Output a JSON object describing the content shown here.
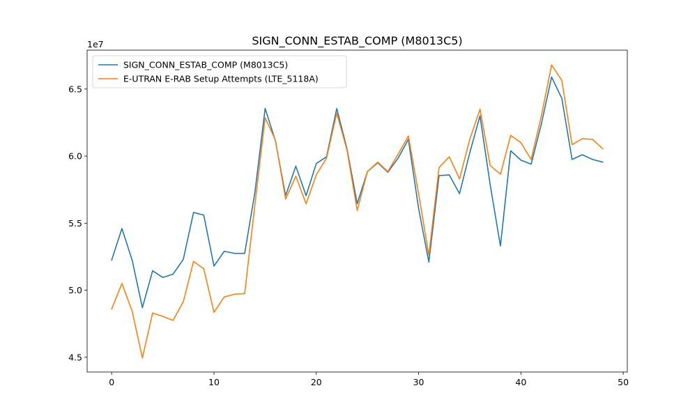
{
  "chart_data": {
    "type": "line",
    "title": "SIGN_CONN_ESTAB_COMP (M8013C5)",
    "xlabel": "",
    "ylabel": "",
    "y_offset_label": "1e7",
    "xlim": [
      -2.4,
      50.4
    ],
    "ylim": [
      4.39,
      6.79
    ],
    "x_ticks": [
      0,
      10,
      20,
      30,
      40,
      50
    ],
    "y_ticks": [
      4.5,
      5.0,
      5.5,
      6.0,
      6.5
    ],
    "y_tick_labels": [
      "4.5",
      "5.0",
      "5.5",
      "6.0",
      "6.5"
    ],
    "x_tick_labels": [
      "0",
      "10",
      "20",
      "30",
      "40",
      "50"
    ],
    "grid": false,
    "legend_position": "upper-left",
    "x": [
      0,
      1,
      2,
      3,
      4,
      5,
      6,
      7,
      8,
      9,
      10,
      11,
      12,
      13,
      14,
      15,
      16,
      17,
      18,
      19,
      20,
      21,
      22,
      23,
      24,
      25,
      26,
      27,
      28,
      29,
      30,
      31,
      32,
      33,
      34,
      35,
      36,
      37,
      38,
      39,
      40,
      41,
      42,
      43,
      44,
      45,
      46,
      47,
      48
    ],
    "series": [
      {
        "name": "SIGN_CONN_ESTAB_COMP (M8013C5)",
        "color": "#1f77b4",
        "values": [
          5.225,
          5.46,
          5.225,
          4.87,
          5.145,
          5.095,
          5.12,
          5.23,
          5.58,
          5.56,
          5.18,
          5.29,
          5.275,
          5.275,
          5.73,
          6.355,
          6.115,
          5.705,
          5.925,
          5.705,
          5.945,
          5.995,
          6.355,
          6.055,
          5.645,
          5.885,
          5.95,
          5.88,
          5.985,
          6.125,
          5.61,
          5.21,
          5.855,
          5.86,
          5.72,
          6.025,
          6.3,
          5.785,
          5.33,
          6.04,
          5.97,
          5.94,
          6.24,
          6.59,
          6.43,
          5.975,
          6.01,
          5.975,
          5.955
        ]
      },
      {
        "name": "E-UTRAN E-RAB Setup Attempts (LTE_5118A)",
        "color": "#ff7f0e",
        "values": [
          4.86,
          5.05,
          4.845,
          4.495,
          4.83,
          4.805,
          4.775,
          4.915,
          5.215,
          5.16,
          4.835,
          4.95,
          4.97,
          4.975,
          5.64,
          6.285,
          6.12,
          5.68,
          5.85,
          5.645,
          5.86,
          5.985,
          6.32,
          6.045,
          5.595,
          5.885,
          5.955,
          5.885,
          6.015,
          6.15,
          5.72,
          5.26,
          5.915,
          5.995,
          5.83,
          6.125,
          6.35,
          5.93,
          5.865,
          6.155,
          6.1,
          5.975,
          6.3,
          6.68,
          6.565,
          6.085,
          6.13,
          6.125,
          6.055
        ]
      }
    ]
  }
}
